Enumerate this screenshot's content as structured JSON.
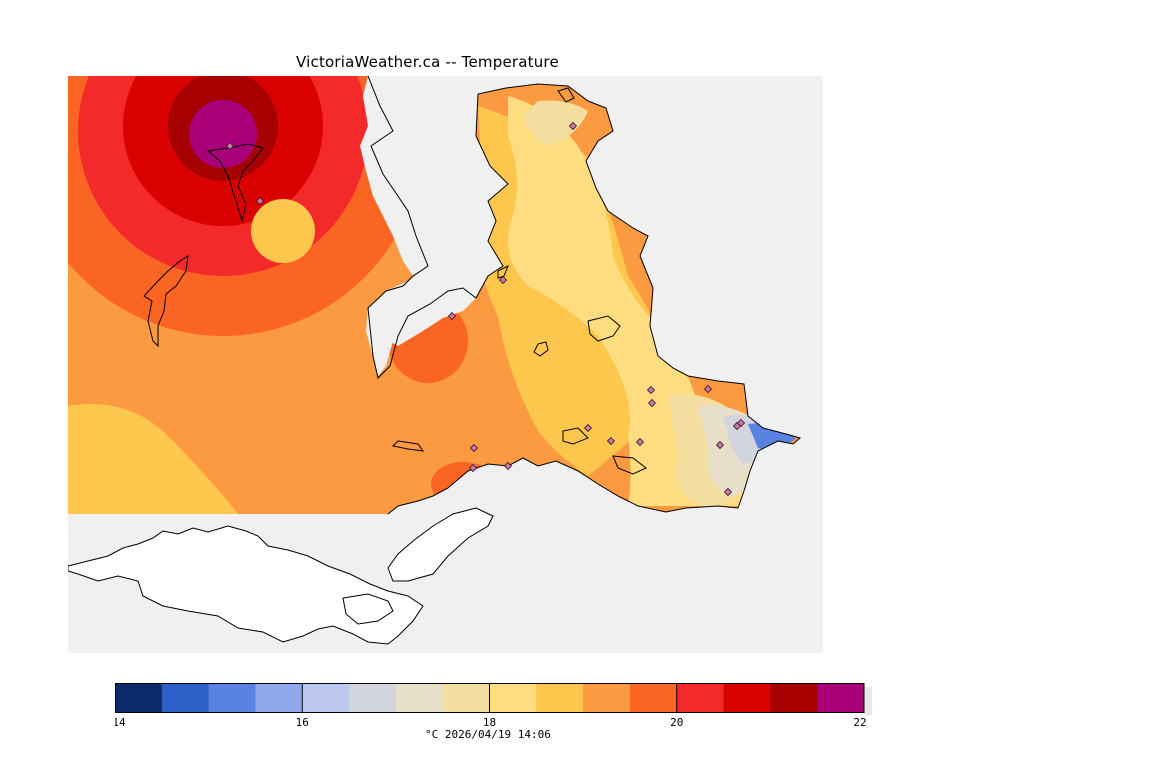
{
  "title": "VictoriaWeather.ca -- Temperature",
  "caption": "°C  2026/04/19 14:06",
  "legend": {
    "min": 14,
    "max": 22,
    "step": 0.5,
    "tick_labels": [
      "14",
      "16",
      "18",
      "20",
      "22"
    ],
    "colors": [
      "#0b2a6b",
      "#2f5fc8",
      "#5a82e2",
      "#8fa9ec",
      "#bcc8ef",
      "#d2d4de",
      "#e7dfca",
      "#f3dea0",
      "#fedc80",
      "#fdc64c",
      "#fb9a40",
      "#fb6524",
      "#f42a2a",
      "#d90000",
      "#a60000",
      "#a9007a"
    ]
  },
  "map": {
    "background": "#f0f0f0",
    "fill_colors": {
      "t19_19_5": "#fb9a40",
      "t19_5_20": "#fb6524",
      "t20_20_5": "#f42a2a",
      "t20_5_21": "#d90000",
      "t21_21_5": "#a60000",
      "t21_5_22": "#a9007a",
      "t18_5_19": "#fdc64c",
      "t18_18_5": "#fedc80",
      "t17_5_18": "#f3dea0",
      "t17_17_5": "#e7dfca",
      "t16_5_17": "#d2d4de",
      "t16_16_5": "#bcc8ef",
      "t15_5_16": "#5a82e2"
    },
    "station_marker": "diamond",
    "station_count": 18
  }
}
